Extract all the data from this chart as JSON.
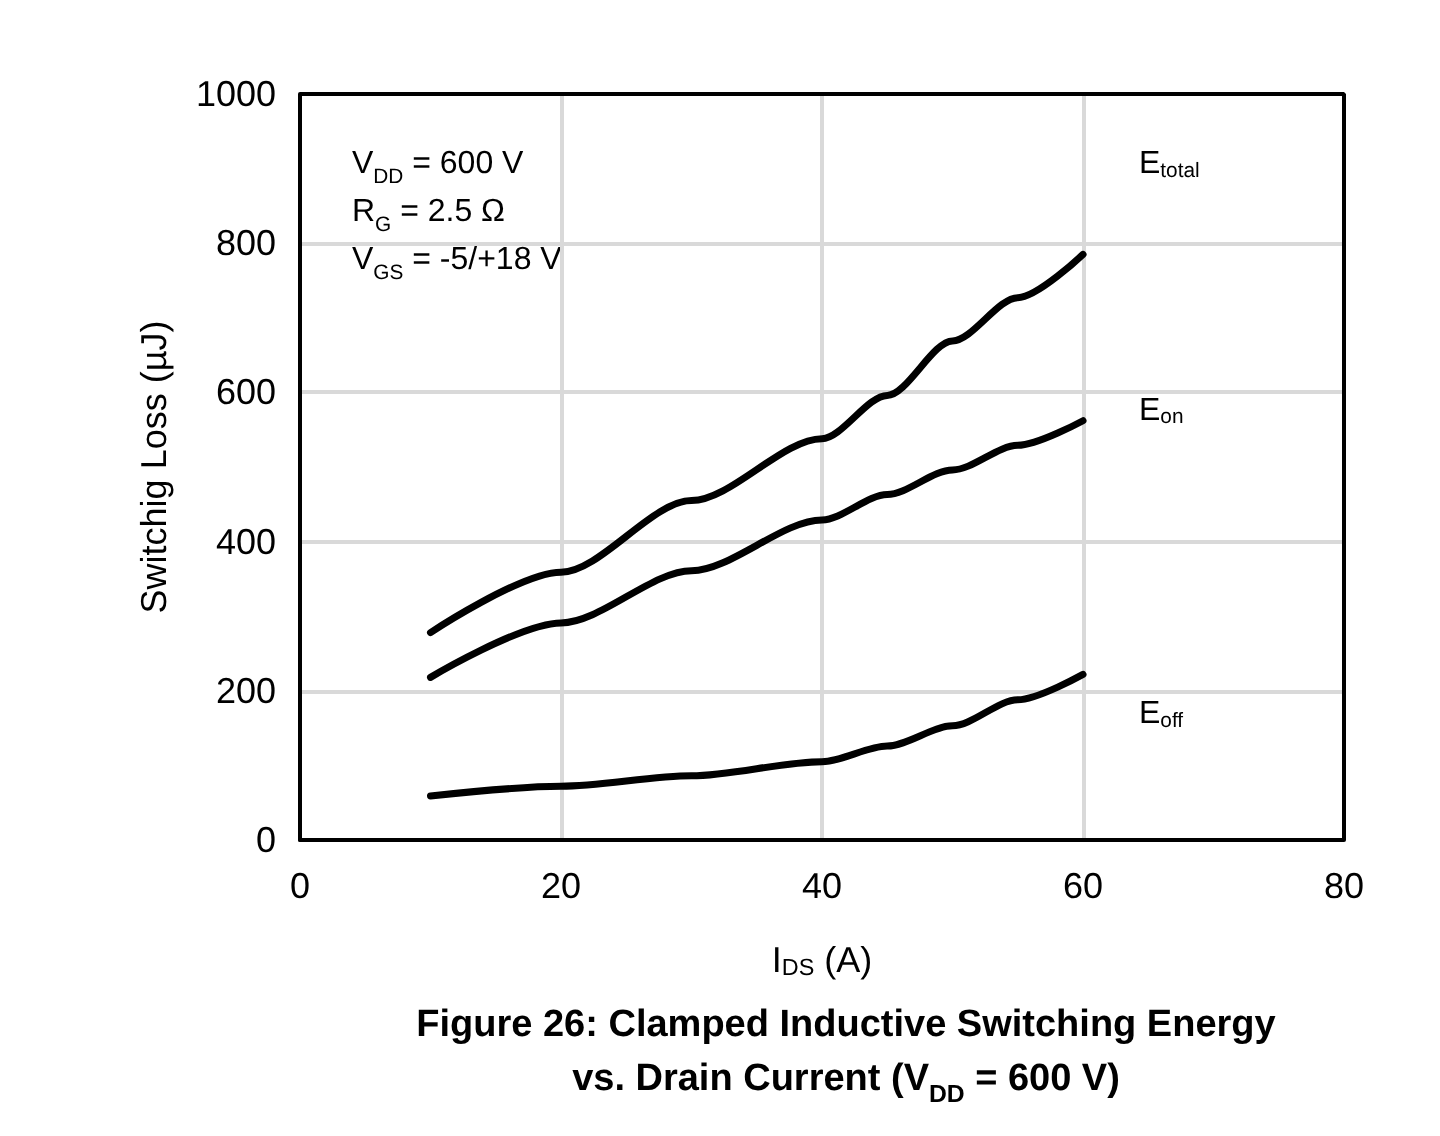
{
  "chart_data": {
    "type": "line",
    "title": "Figure 26: Clamped Inductive Switching Energy\nvs. Drain Current (V$_{DD}$ = 600 V)",
    "xlabel": "I$_{DS}$ (A)",
    "ylabel": "Switchig Loss (µJ)",
    "annotations": [
      "V$_{DD}$ = 600 V\nR$_{G}$ = 2.5 Ω\nV$_{GS}$ = -5/+18 V"
    ],
    "x": [
      10,
      20,
      30,
      40,
      45,
      50,
      55,
      60
    ],
    "series": [
      {
        "name": "E$_{total}$",
        "color": "#000000",
        "values": [
          278,
          359,
          455,
          538,
          596,
          669,
          727,
          785
        ]
      },
      {
        "name": "E$_{on}$",
        "color": "#000000",
        "values": [
          218,
          291,
          361,
          429,
          463,
          496,
          529,
          562
        ]
      },
      {
        "name": "E$_{off}$",
        "color": "#000000",
        "values": [
          59,
          72,
          86,
          105,
          126,
          153,
          188,
          222
        ]
      }
    ],
    "xlim": [
      0,
      80
    ],
    "xticks": [
      0,
      20,
      40,
      60,
      80
    ],
    "ylim": [
      0,
      1000
    ],
    "yticks": [
      0,
      200,
      400,
      600,
      800,
      1000
    ],
    "grid": true,
    "marker": "none",
    "line_style": "solid"
  }
}
